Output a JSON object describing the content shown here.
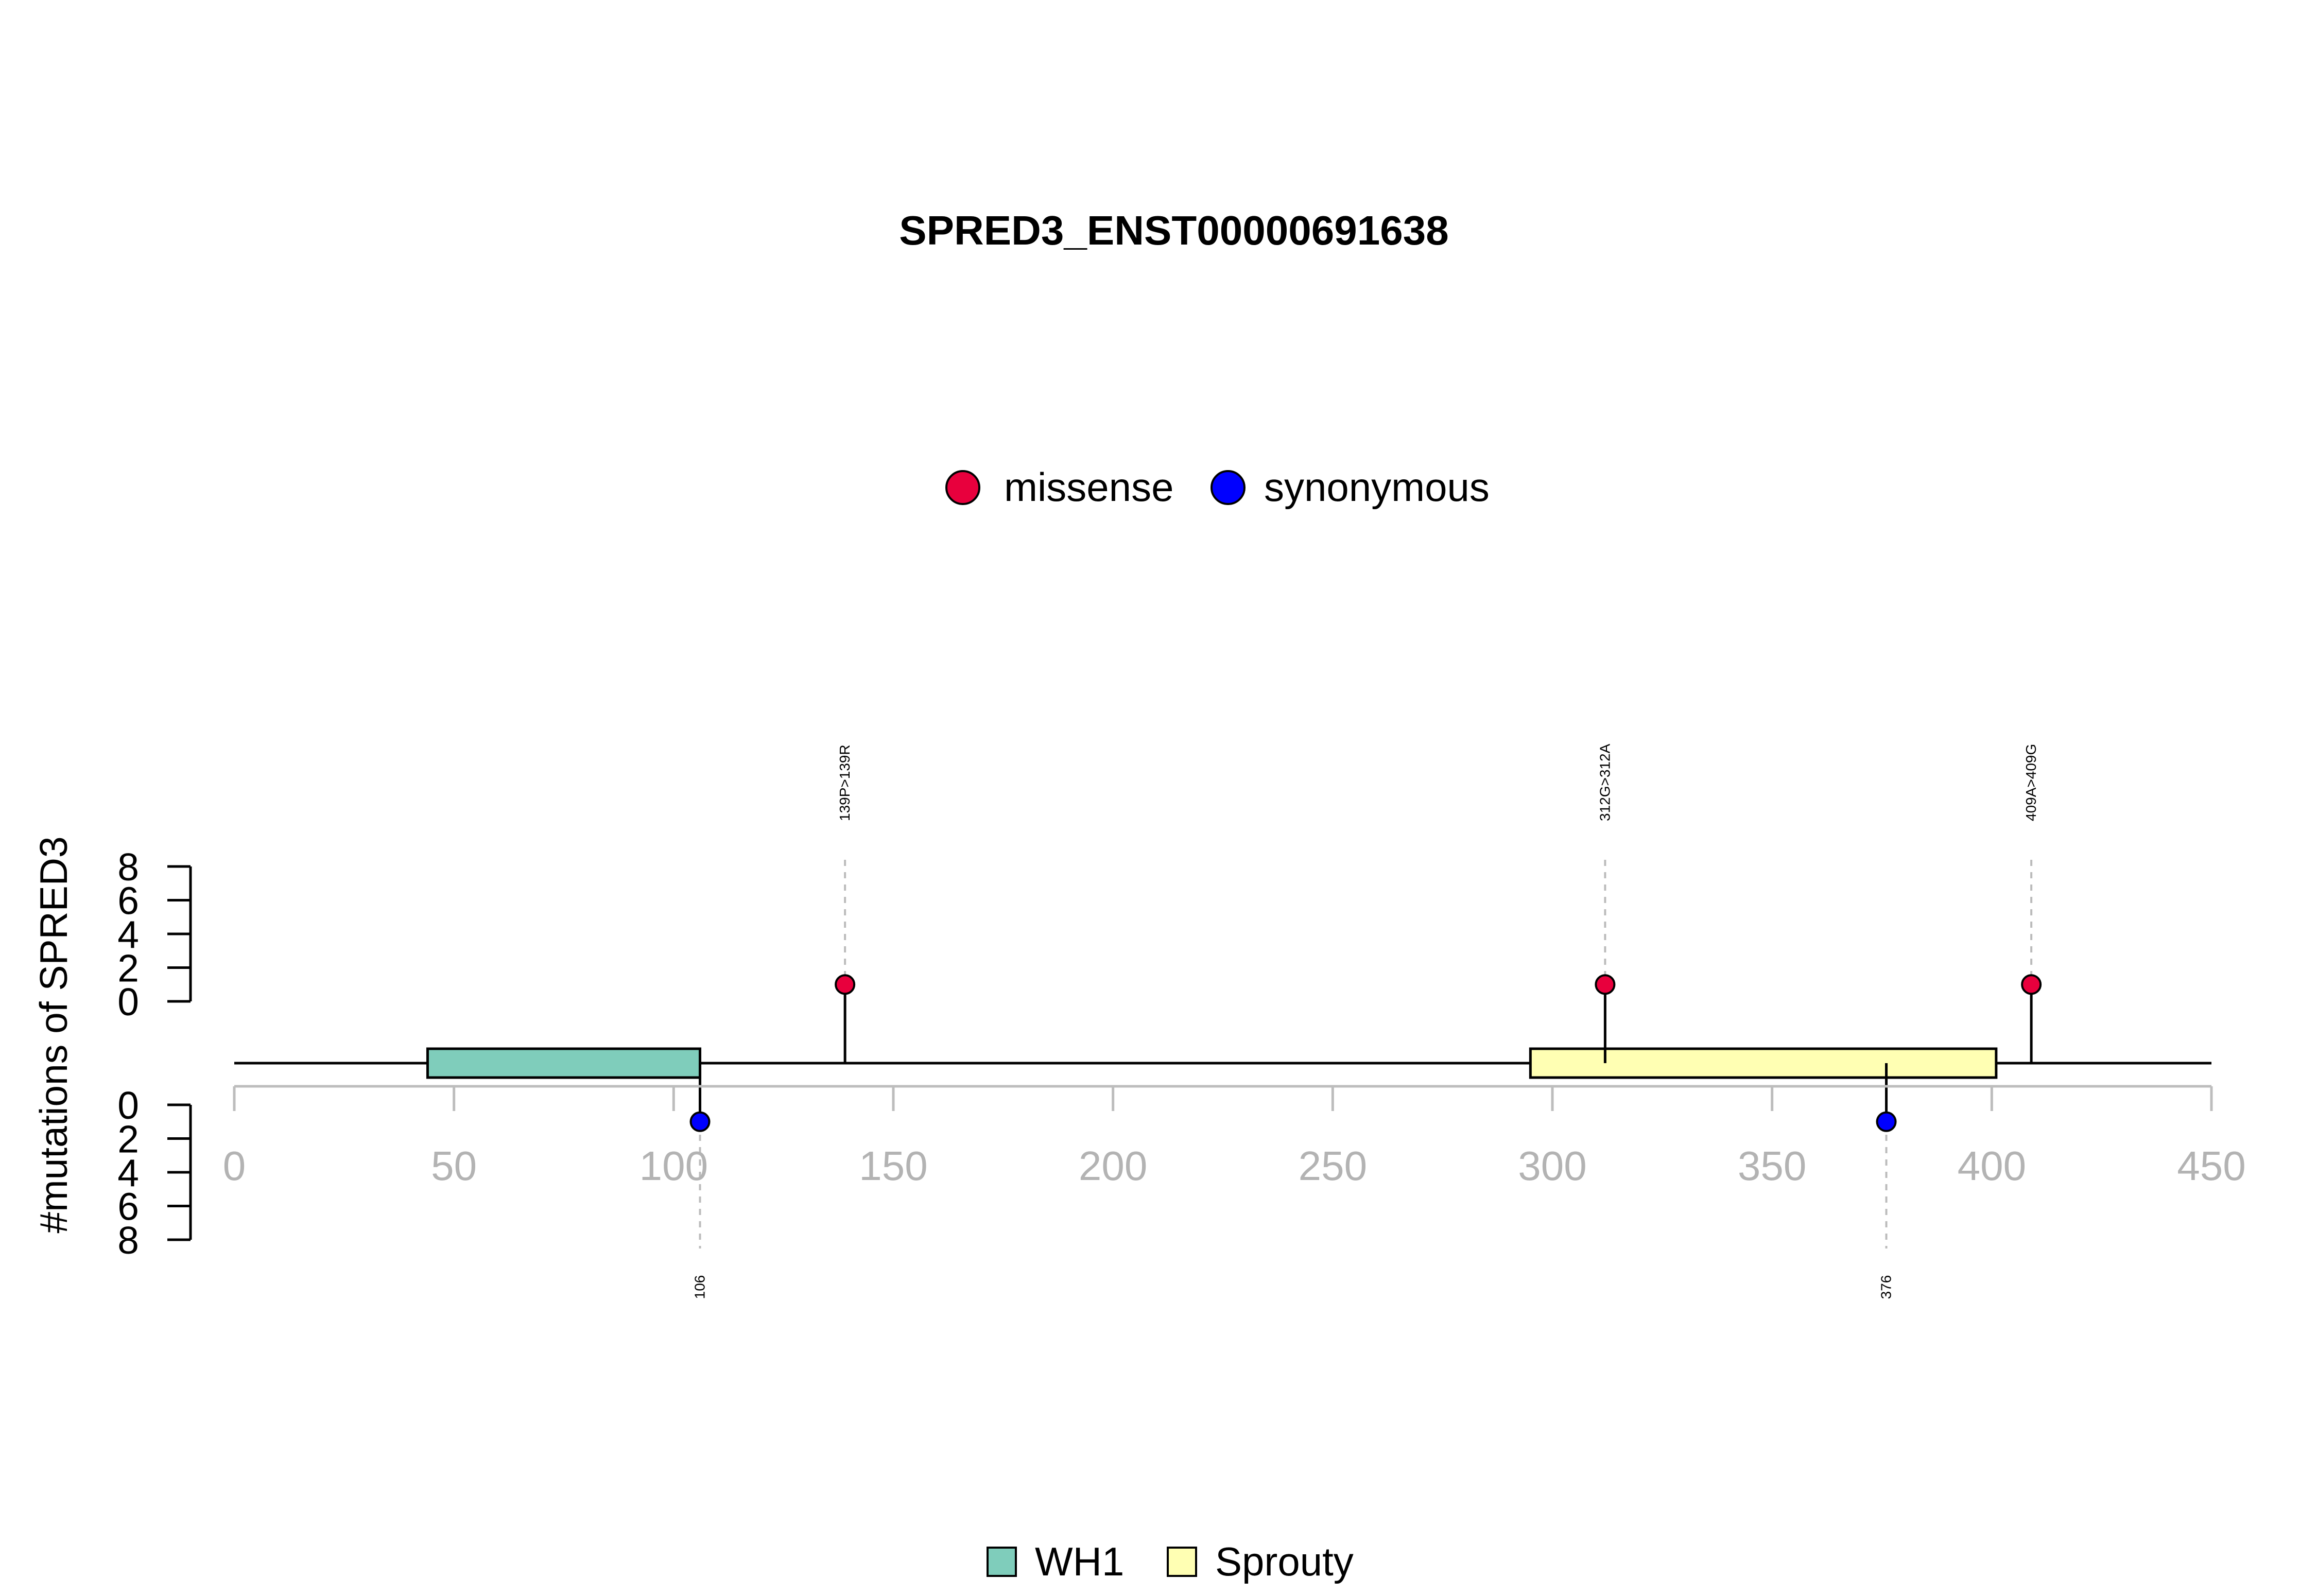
{
  "chart_data": {
    "type": "lollipop",
    "title": "SPRED3_ENST00000691638",
    "ylabel": "#mutations of SPRED3",
    "xlim": [
      0,
      450
    ],
    "x_ticks": [
      "0",
      "50",
      "100",
      "150",
      "200",
      "250",
      "300",
      "350",
      "400",
      "450"
    ],
    "y_ticks": [
      "0",
      "2",
      "4",
      "6",
      "8"
    ],
    "ylim": [
      0,
      8
    ],
    "protein_length": 450,
    "mutation_legend": [
      {
        "name": "missense",
        "color": "#e8003d"
      },
      {
        "name": "synonymous",
        "color": "#0000ff"
      }
    ],
    "domain_legend": [
      {
        "name": "WH1",
        "color": "#7fcdbb"
      },
      {
        "name": "Sprouty",
        "color": "#ffffb3"
      }
    ],
    "domains": [
      {
        "name": "WH1",
        "start": 44,
        "end": 106,
        "color": "#7fcdbb"
      },
      {
        "name": "Sprouty",
        "start": 295,
        "end": 401,
        "color": "#ffffb3"
      }
    ],
    "mutations": [
      {
        "position": 139,
        "count": 1,
        "type": "missense",
        "label": "139P>139R",
        "side": "top"
      },
      {
        "position": 312,
        "count": 1,
        "type": "missense",
        "label": "312G>312A",
        "side": "top"
      },
      {
        "position": 409,
        "count": 1,
        "type": "missense",
        "label": "409A>409G",
        "side": "top"
      },
      {
        "position": 106,
        "count": 1,
        "type": "synonymous",
        "label": "106",
        "side": "bottom"
      },
      {
        "position": 376,
        "count": 1,
        "type": "synonymous",
        "label": "376",
        "side": "bottom"
      }
    ]
  }
}
